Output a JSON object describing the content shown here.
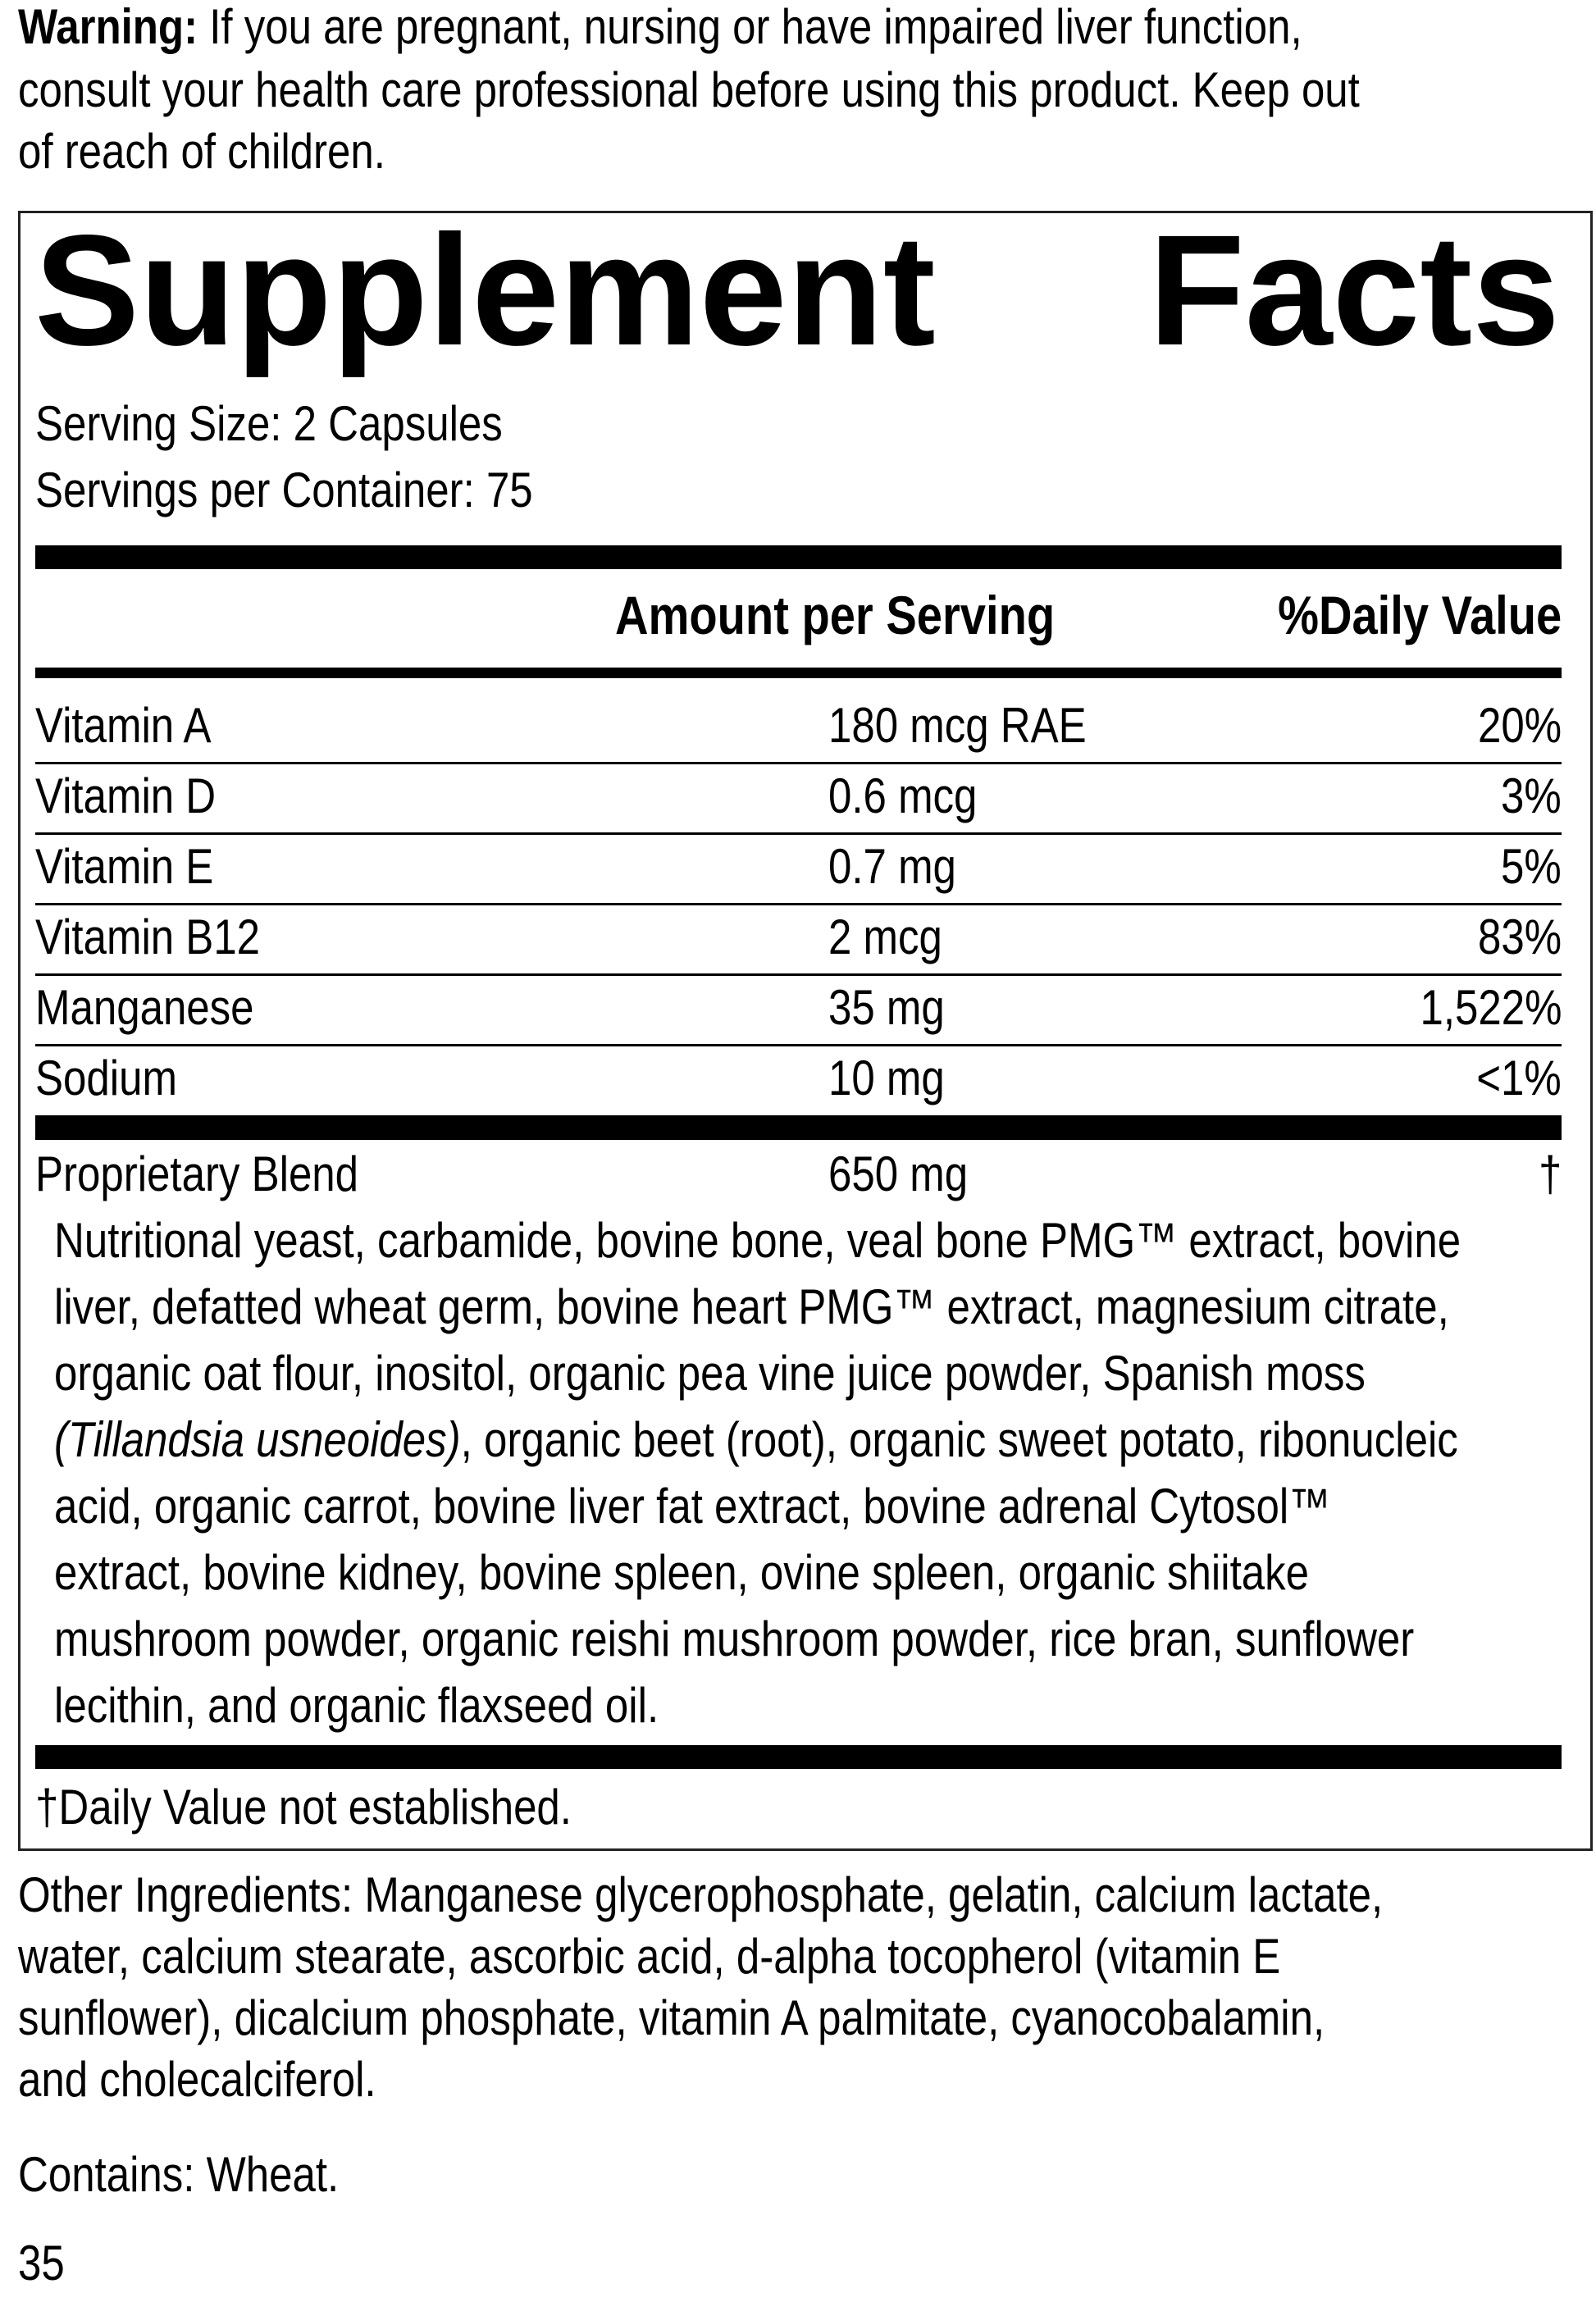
{
  "warning": {
    "label": "Warning:",
    "lines": [
      " If you are pregnant, nursing or have impaired liver function,",
      "consult your health care professional before using this product. Keep out",
      "of reach of children."
    ]
  },
  "facts": {
    "title_left": "Supplement",
    "title_right": "Facts",
    "serving_size": "Serving Size: 2 Capsules",
    "servings_per_container": "Servings per Container: 75",
    "header": {
      "amount": "Amount per Serving",
      "daily_value": "%Daily Value"
    },
    "rows": [
      {
        "name": "Vitamin A",
        "amount": "180 mcg RAE",
        "dv": "20%"
      },
      {
        "name": "Vitamin D",
        "amount": "0.6 mcg",
        "dv": "3%"
      },
      {
        "name": "Vitamin E",
        "amount": "0.7 mg",
        "dv": "5%"
      },
      {
        "name": "Vitamin B12",
        "amount": "2 mcg",
        "dv": "83%"
      },
      {
        "name": "Manganese",
        "amount": "35 mg",
        "dv": "1,522%"
      },
      {
        "name": "Sodium",
        "amount": "10 mg",
        "dv": "<1%"
      }
    ],
    "blend": {
      "name": "Proprietary Blend",
      "amount": "650 mg",
      "dv": "†",
      "lines": [
        "Nutritional yeast, carbamide, bovine bone, veal bone PMG™ extract, bovine",
        "liver, defatted wheat germ, bovine heart PMG™ extract, magnesium citrate,",
        "organic oat flour, inositol, organic pea vine juice powder, Spanish moss",
        "",
        "acid, organic carrot, bovine liver fat extract, bovine adrenal Cytosol™",
        "extract, bovine kidney, bovine spleen, ovine spleen, organic shiitake",
        "mushroom powder, organic reishi mushroom powder, rice bran, sunflower",
        "lecithin, and organic flaxseed oil."
      ],
      "italic_segment": "(Tillandsia usneoides)",
      "line4_rest": ", organic beet (root), organic sweet potato, ribonucleic"
    },
    "footnote": "†Daily Value not established."
  },
  "other_ingredients": [
    "Other Ingredients: Manganese glycerophosphate, gelatin, calcium lactate,",
    "water, calcium stearate, ascorbic acid, d-alpha tocopherol (vitamin E",
    "sunflower), dicalcium phosphate, vitamin A palmitate, cyanocobalamin,",
    "and cholecalciferol."
  ],
  "contains": "Contains: Wheat.",
  "page_number": "35"
}
